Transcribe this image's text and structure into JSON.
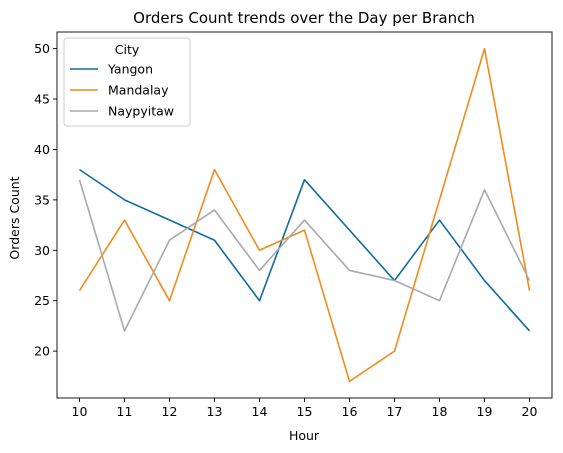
{
  "chart_data": {
    "type": "line",
    "title": "Orders Count trends over the Day per Branch",
    "xlabel": "Hour",
    "ylabel": "Orders Count",
    "x": [
      10,
      11,
      12,
      13,
      14,
      15,
      16,
      17,
      18,
      19,
      20
    ],
    "xlim": [
      9.5,
      20.5
    ],
    "ylim": [
      15.35,
      51.65
    ],
    "yticks": [
      20,
      25,
      30,
      35,
      40,
      45,
      50
    ],
    "grid": false,
    "legend": {
      "title": "City",
      "placement": "top-left"
    },
    "series": [
      {
        "name": "Yangon",
        "color": "#0f6ba3",
        "values": [
          38,
          35,
          33,
          31,
          25,
          37,
          32,
          27,
          33,
          27,
          22
        ]
      },
      {
        "name": "Mandalay",
        "color": "#f28a1d",
        "values": [
          26,
          33,
          25,
          38,
          30,
          32,
          17,
          20,
          35,
          50,
          26
        ]
      },
      {
        "name": "Naypyitaw",
        "color": "#a9a9a9",
        "values": [
          37,
          22,
          31,
          34,
          28,
          33,
          28,
          27,
          25,
          36,
          27
        ]
      }
    ]
  }
}
